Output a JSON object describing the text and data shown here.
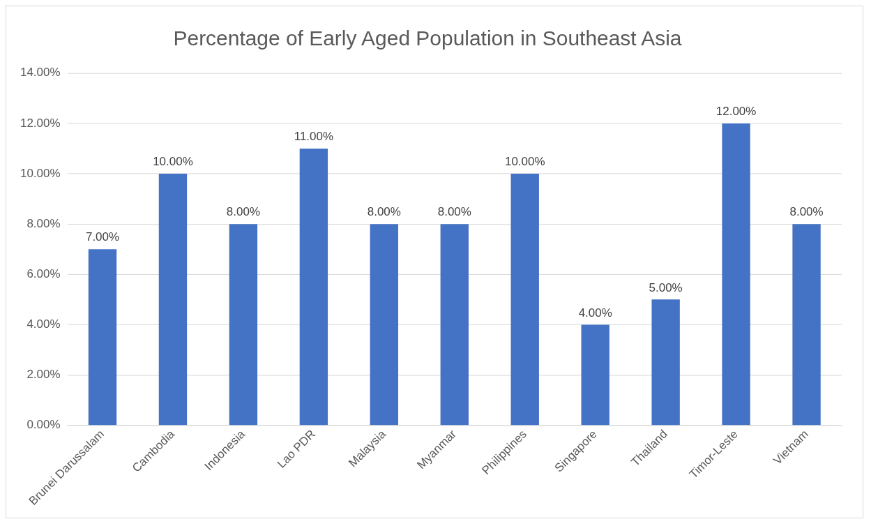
{
  "chart_data": {
    "type": "bar",
    "title": "Percentage of Early Aged Population in Southeast Asia",
    "categories": [
      "Brunei Darussalam",
      "Cambodia",
      "Indonesia",
      "Lao PDR",
      "Malaysia",
      "Myanmar",
      "Philippines",
      "Singapore",
      "Thailand",
      "Timor-Leste",
      "Vietnam"
    ],
    "values": [
      7,
      10,
      8,
      11,
      8,
      8,
      10,
      4,
      5,
      12,
      8
    ],
    "value_labels": [
      "7.00%",
      "10.00%",
      "8.00%",
      "11.00%",
      "8.00%",
      "8.00%",
      "10.00%",
      "4.00%",
      "5.00%",
      "12.00%",
      "8.00%"
    ],
    "color": "#4472c4",
    "ylim": [
      0,
      14
    ],
    "yticks": [
      {
        "value": 0,
        "label": "0.00%"
      },
      {
        "value": 2,
        "label": "2.00%"
      },
      {
        "value": 4,
        "label": "4.00%"
      },
      {
        "value": 6,
        "label": "6.00%"
      },
      {
        "value": 8,
        "label": "8.00%"
      },
      {
        "value": 10,
        "label": "10.00%"
      },
      {
        "value": 12,
        "label": "12.00%"
      },
      {
        "value": 14,
        "label": "14.00%"
      }
    ],
    "grid": "y",
    "legend": false
  }
}
